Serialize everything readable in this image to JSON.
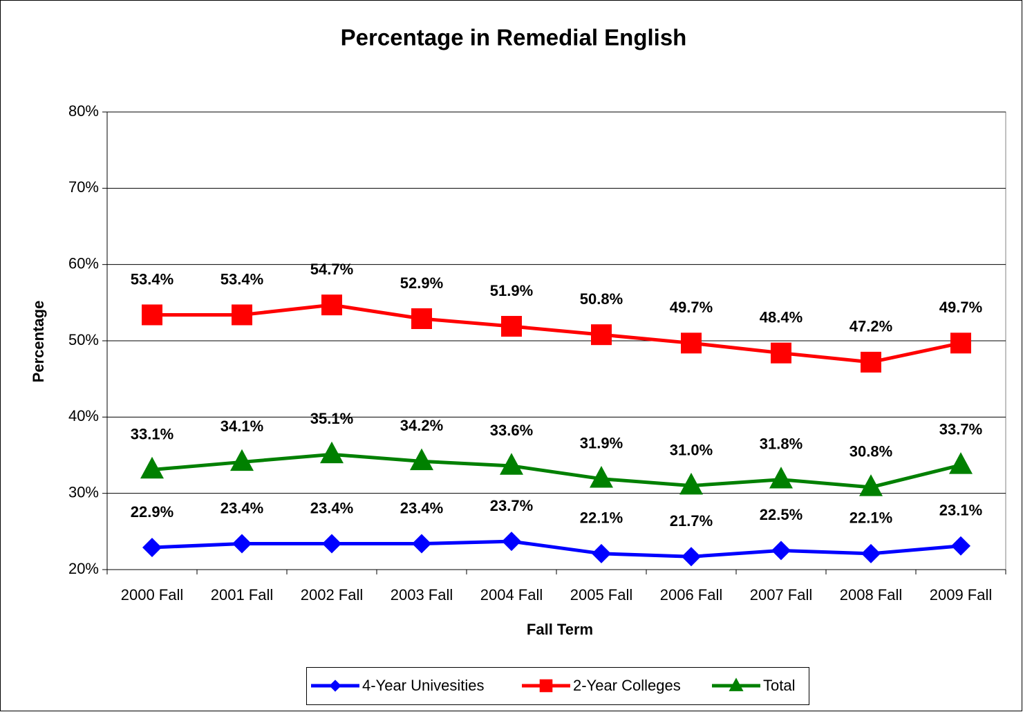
{
  "chart_data": {
    "type": "line",
    "title": "Percentage in Remedial English",
    "x_label": "Fall Term",
    "y_label": "Percentage",
    "categories": [
      "2000 Fall",
      "2001 Fall",
      "2002 Fall",
      "2003 Fall",
      "2004 Fall",
      "2005 Fall",
      "2006 Fall",
      "2007 Fall",
      "2008 Fall",
      "2009 Fall"
    ],
    "series": [
      {
        "name": "4-Year Univesities",
        "color": "#0000ff",
        "marker": "diamond",
        "values": [
          22.9,
          23.4,
          23.4,
          23.4,
          23.7,
          22.1,
          21.7,
          22.5,
          22.1,
          23.1
        ],
        "value_labels": [
          "22.9%",
          "23.4%",
          "23.4%",
          "23.4%",
          "23.7%",
          "22.1%",
          "21.7%",
          "22.5%",
          "22.1%",
          "23.1%"
        ]
      },
      {
        "name": "2-Year Colleges",
        "color": "#ff0000",
        "marker": "square",
        "values": [
          53.4,
          53.4,
          54.7,
          52.9,
          51.9,
          50.8,
          49.7,
          48.4,
          47.2,
          49.7
        ],
        "value_labels": [
          "53.4%",
          "53.4%",
          "54.7%",
          "52.9%",
          "51.9%",
          "50.8%",
          "49.7%",
          "48.4%",
          "47.2%",
          "49.7%"
        ]
      },
      {
        "name": "Total",
        "color": "#008000",
        "marker": "triangle",
        "values": [
          33.1,
          34.1,
          35.1,
          34.2,
          33.6,
          31.9,
          31.0,
          31.8,
          30.8,
          33.7
        ],
        "value_labels": [
          "33.1%",
          "34.1%",
          "35.1%",
          "34.2%",
          "33.6%",
          "31.9%",
          "31.0%",
          "31.8%",
          "30.8%",
          "33.7%"
        ]
      }
    ],
    "ylim": [
      20,
      80
    ],
    "yticks": [
      {
        "value": 20,
        "label": "20%"
      },
      {
        "value": 30,
        "label": "30%"
      },
      {
        "value": 40,
        "label": "40%"
      },
      {
        "value": 50,
        "label": "50%"
      },
      {
        "value": 60,
        "label": "60%"
      },
      {
        "value": 70,
        "label": "70%"
      },
      {
        "value": 80,
        "label": "80%"
      }
    ],
    "grid": true,
    "legend": "bottom"
  }
}
